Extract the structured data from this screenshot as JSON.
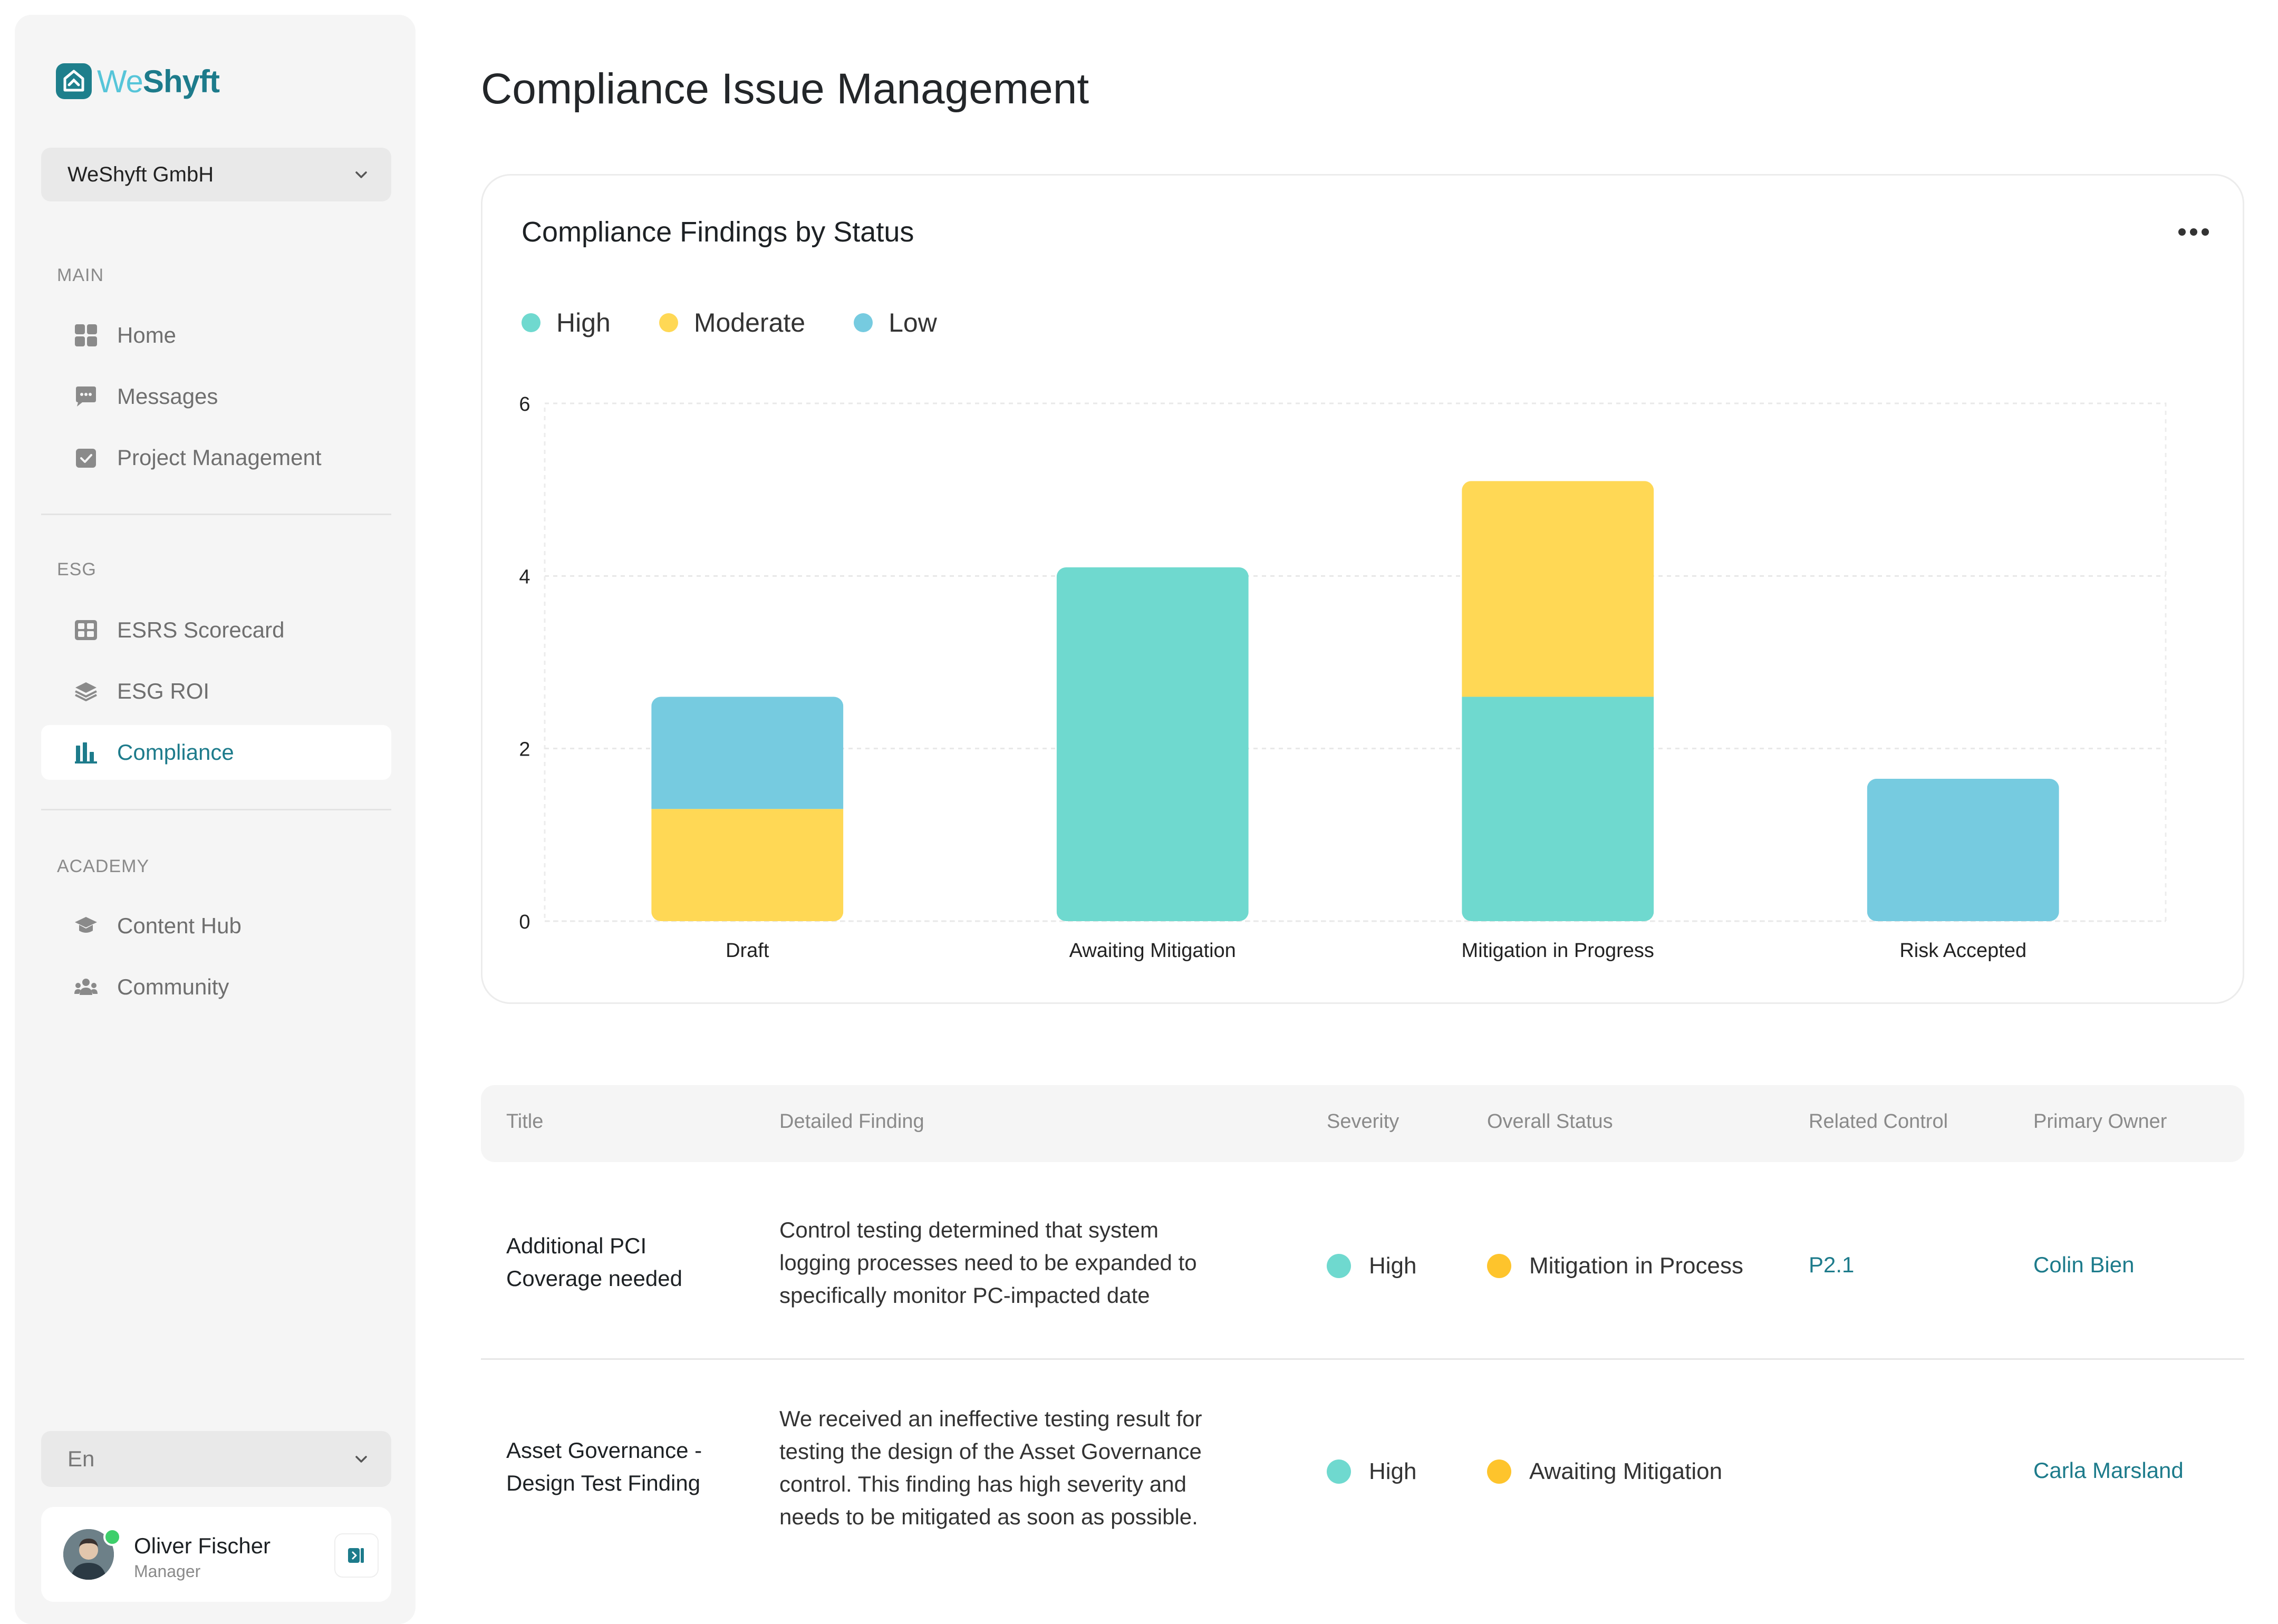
{
  "brand": {
    "name_part1": "We",
    "name_part2": "Shyft"
  },
  "sidebar": {
    "org_selector": "WeShyft GmbH",
    "sections": {
      "main": "MAIN",
      "esg": "ESG",
      "academy": "ACADEMY"
    },
    "items": {
      "home": "Home",
      "messages": "Messages",
      "project_management": "Project Management",
      "esrs_scorecard": "ESRS Scorecard",
      "esg_roi": "ESG ROI",
      "compliance": "Compliance",
      "content_hub": "Content Hub",
      "community": "Community"
    },
    "language": "En",
    "user": {
      "name": "Oliver Fischer",
      "role": "Manager"
    }
  },
  "page": {
    "title": "Compliance Issue Management"
  },
  "chart_card": {
    "title": "Compliance Findings by Status",
    "legend": [
      {
        "label": "High",
        "color": "#6fd9cf"
      },
      {
        "label": "Moderate",
        "color": "#ffd855"
      },
      {
        "label": "Low",
        "color": "#76cbe0"
      }
    ]
  },
  "chart_data": {
    "type": "bar",
    "stacked": true,
    "categories": [
      "Draft",
      "Awaiting Mitigation",
      "Mitigation in Progress",
      "Risk Accepted"
    ],
    "series": [
      {
        "name": "High",
        "color": "#6fd9cf",
        "values": [
          0,
          4.1,
          2.6,
          0
        ]
      },
      {
        "name": "Moderate",
        "color": "#ffd855",
        "values": [
          1.3,
          0,
          2.5,
          0
        ]
      },
      {
        "name": "Low",
        "color": "#76cbe0",
        "values": [
          1.3,
          0,
          0,
          1.65
        ]
      }
    ],
    "y_ticks": [
      "0",
      "2",
      "4",
      "6"
    ],
    "ylim": [
      0,
      6
    ],
    "grid": true,
    "legend_position": "top-left"
  },
  "table": {
    "headers": {
      "title": "Title",
      "finding": "Detailed Finding",
      "severity": "Severity",
      "status": "Overall Status",
      "control": "Related Control",
      "owner": "Primary Owner"
    },
    "rows": [
      {
        "title_lines": [
          "Additional PCI",
          "Coverage needed"
        ],
        "finding_lines": [
          "Control testing determined that system",
          "logging processes need to be expanded to",
          "specifically monitor PC-impacted date"
        ],
        "severity": "High",
        "severity_color": "#6fd9cf",
        "status": "Mitigation in Process",
        "status_color": "#fec42c",
        "control": "P2.1",
        "owner": "Colin Bien"
      },
      {
        "title_lines": [
          "Asset Governance -",
          "Design Test Finding"
        ],
        "finding_lines": [
          "We received an ineffective testing result for",
          "testing the design of the Asset Governance",
          "control. This finding has high severity and",
          "needs to be mitigated as soon as possible."
        ],
        "severity": "High",
        "severity_color": "#6fd9cf",
        "status": "Awaiting Mitigation",
        "status_color": "#fec42c",
        "control": "",
        "owner": "Carla Marsland"
      }
    ]
  }
}
